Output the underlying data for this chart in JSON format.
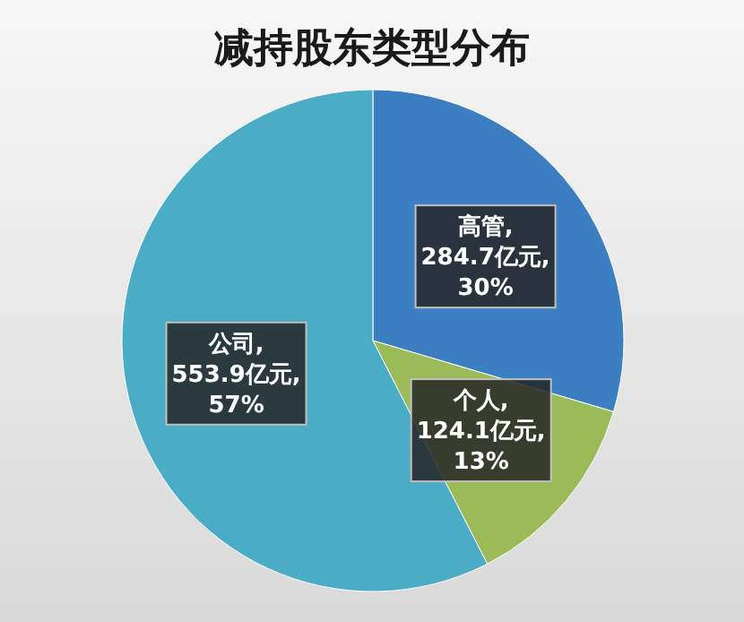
{
  "chart_data": {
    "type": "pie",
    "title": "减持股东类型分布",
    "categories": [
      "高管",
      "个人",
      "公司"
    ],
    "values": [
      284.7,
      124.1,
      553.9
    ],
    "colors": [
      "#3c7ec2",
      "#9bbb59",
      "#4bacc6"
    ],
    "value_labels": [
      ",\n284.7亿元,\n30%",
      ",\n124.1亿元,\n13%",
      ",\n553.9亿元,\n57%"
    ]
  }
}
